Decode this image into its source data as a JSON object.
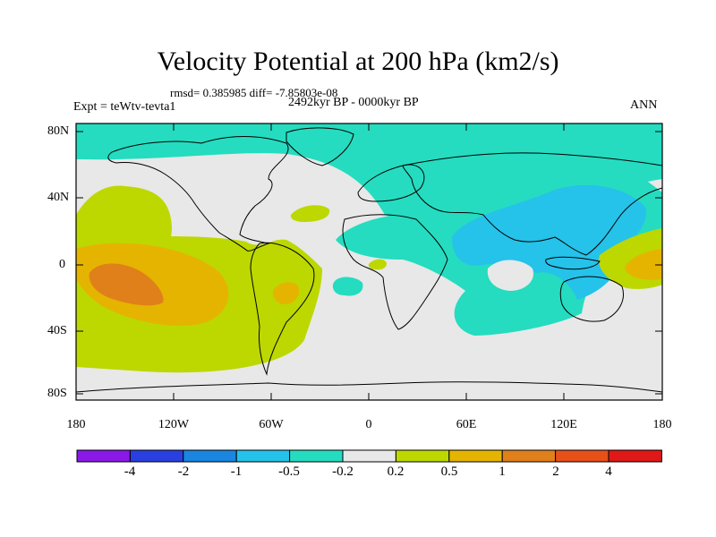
{
  "header": {
    "title": "Velocity Potential at 200 hPa (km2/s)",
    "stats": "rmsd= 0.385985 diff= -7.85803e-08",
    "period": "2492kyr BP - 0000kyr BP",
    "experiment": "Expt = teWtv-tevta1",
    "season": "ANN"
  },
  "axes": {
    "lat_labels": [
      "80N",
      "40N",
      "0",
      "40S",
      "80S"
    ],
    "lon_labels": [
      "180",
      "120W",
      "60W",
      "0",
      "60E",
      "120E",
      "180"
    ]
  },
  "colorbar": {
    "labels": [
      "-4",
      "-2",
      "-1",
      "-0.5",
      "-0.2",
      "0.2",
      "0.5",
      "1",
      "2",
      "4"
    ],
    "colors": [
      "#8a19e8",
      "#2a3fe0",
      "#1a86e0",
      "#25c2ea",
      "#25dcc0",
      "#e8e8e8",
      "#bcd800",
      "#e5b400",
      "#e0801a",
      "#e8501a",
      "#e01818"
    ]
  },
  "map_colors": {
    "neutral": "#e8e8e8",
    "cyan": "#25dcc0",
    "blue": "#25c2ea",
    "yellow_green": "#bcd800",
    "orange": "#e5b400",
    "dark_orange": "#e0801a",
    "coast": "#000000"
  }
}
